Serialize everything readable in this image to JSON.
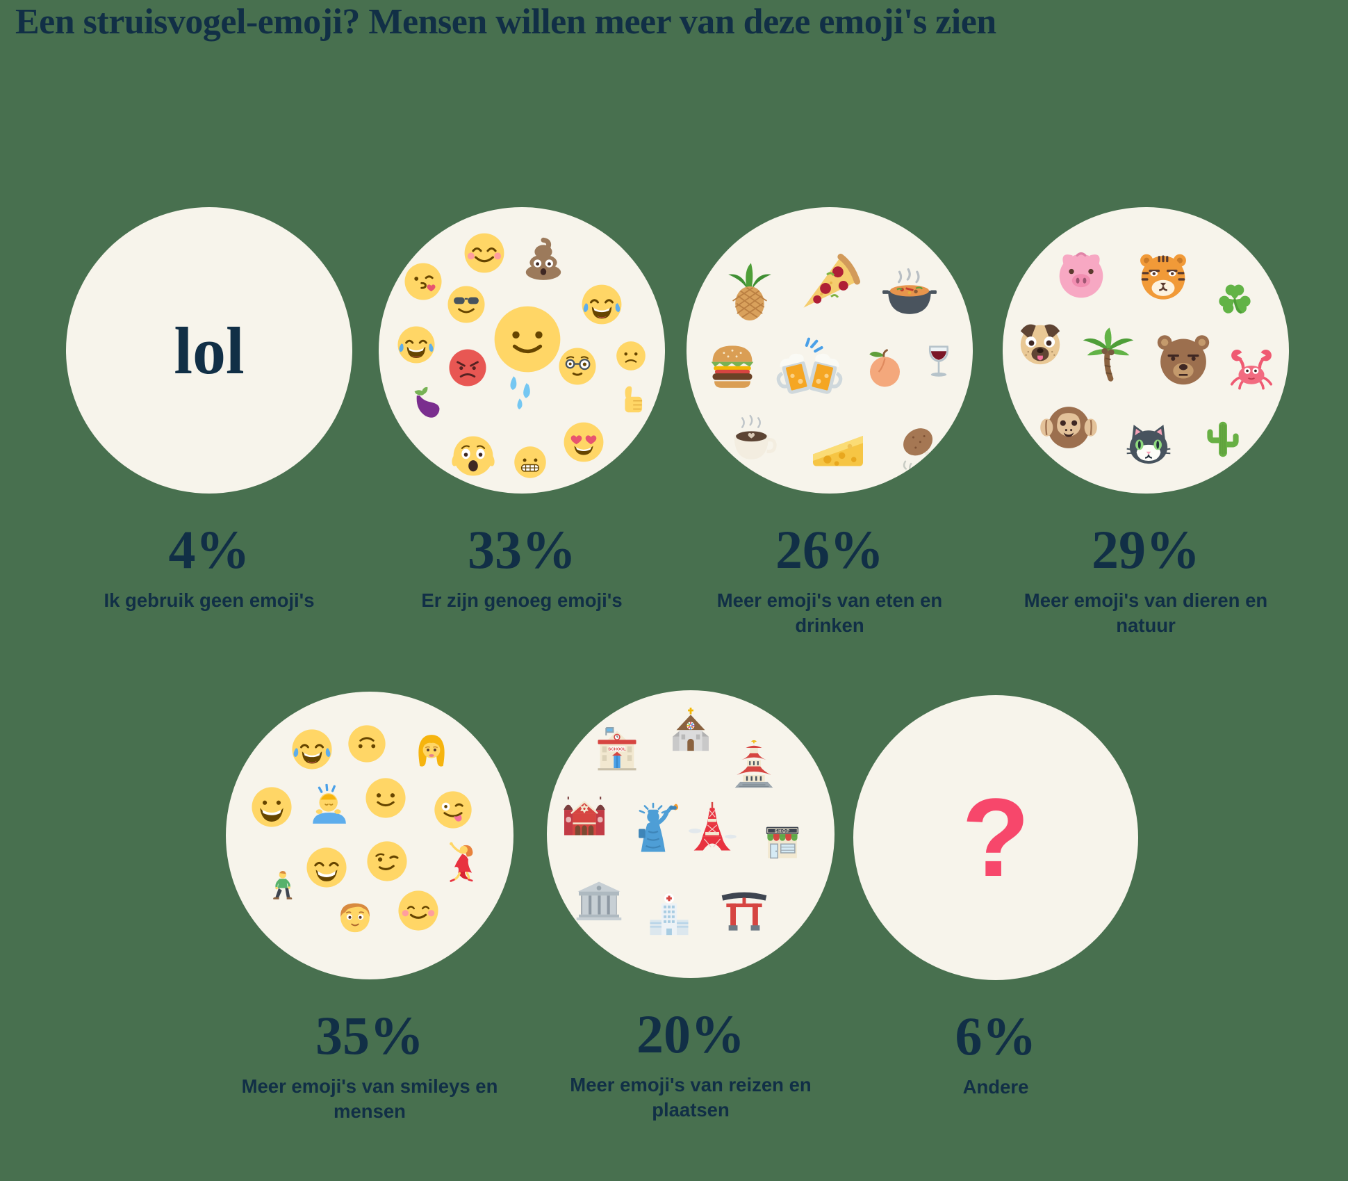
{
  "title": "Een struisvogel-emoji? Mensen willen meer van deze emoji's zien",
  "colors": {
    "background": "#48704F",
    "circle": "#F7F4EB",
    "text": "#112F46",
    "accent_pink": "#F7476B"
  },
  "signs": {
    "school": "SCHOOL",
    "shop": "SHOP"
  },
  "figures": [
    {
      "id": "geen-emoji",
      "percent": "4%",
      "caption": "Ik gebruik geen emoji's",
      "center_text": "lol",
      "emojis": []
    },
    {
      "id": "genoeg-emoji",
      "percent": "33%",
      "caption": "Er zijn genoeg emoji's",
      "center_text": "",
      "emojis": [
        "smiling-face-blush",
        "pile-of-poo",
        "face-blowing-kiss",
        "smiling-face-sunglasses",
        "face-with-tears-of-joy",
        "slightly-smiling-face",
        "face-with-tears-of-joy",
        "angry-face",
        "nerd-face",
        "slightly-frowning-face",
        "eggplant",
        "sweat-droplets",
        "thumbs-up",
        "face-screaming-in-fear",
        "grimacing-face",
        "smiling-face-heart-eyes"
      ]
    },
    {
      "id": "eten-drinken",
      "percent": "26%",
      "caption": "Meer emoji's van eten en drinken",
      "center_text": "",
      "emojis": [
        "pineapple",
        "pizza-slice",
        "pot-of-food",
        "hamburger",
        "clinking-beer-mugs",
        "peach",
        "wine-glass",
        "hot-beverage",
        "cheese-wedge",
        "poultry-leg"
      ]
    },
    {
      "id": "dieren-natuur",
      "percent": "29%",
      "caption": "Meer emoji's van dieren en natuur",
      "center_text": "",
      "emojis": [
        "pig-face",
        "tiger-face",
        "shamrock",
        "pug-dog-face",
        "palm-tree",
        "bear-face",
        "crab",
        "hear-no-evil-monkey",
        "cat-face",
        "cactus"
      ]
    },
    {
      "id": "smileys-mensen",
      "percent": "35%",
      "caption": "Meer emoji's van smileys en mensen",
      "center_text": "",
      "emojis": [
        "face-with-tears-of-joy",
        "upside-down-face",
        "blond-woman",
        "grinning-face",
        "person-bowing",
        "slightly-smiling-face",
        "winking-face-with-tongue",
        "man-walking",
        "beaming-face",
        "smirking-wink-face",
        "woman-dancing",
        "boy-face",
        "smiling-face-closed-eyes"
      ]
    },
    {
      "id": "reizen-plaatsen",
      "percent": "20%",
      "caption": "Meer emoji's van reizen en plaatsen",
      "center_text": "",
      "emojis": [
        "school",
        "church",
        "japanese-castle",
        "synagogue",
        "statue-of-liberty",
        "tokyo-tower",
        "convenience-store",
        "classical-building",
        "hospital",
        "shinto-shrine"
      ]
    },
    {
      "id": "andere",
      "percent": "6%",
      "caption": "Andere",
      "center_text": "?",
      "emojis": []
    }
  ],
  "chart_data": {
    "type": "bar",
    "title": "Een struisvogel-emoji? Mensen willen meer van deze emoji's zien",
    "categories": [
      "Ik gebruik geen emoji's",
      "Er zijn genoeg emoji's",
      "Meer emoji's van eten en drinken",
      "Meer emoji's van dieren en natuur",
      "Meer emoji's van smileys en mensen",
      "Meer emoji's van reizen en plaatsen",
      "Andere"
    ],
    "values": [
      4,
      33,
      26,
      29,
      35,
      20,
      6
    ],
    "unit": "%",
    "xlabel": "",
    "ylabel": "",
    "legend": "none",
    "grid": false
  }
}
